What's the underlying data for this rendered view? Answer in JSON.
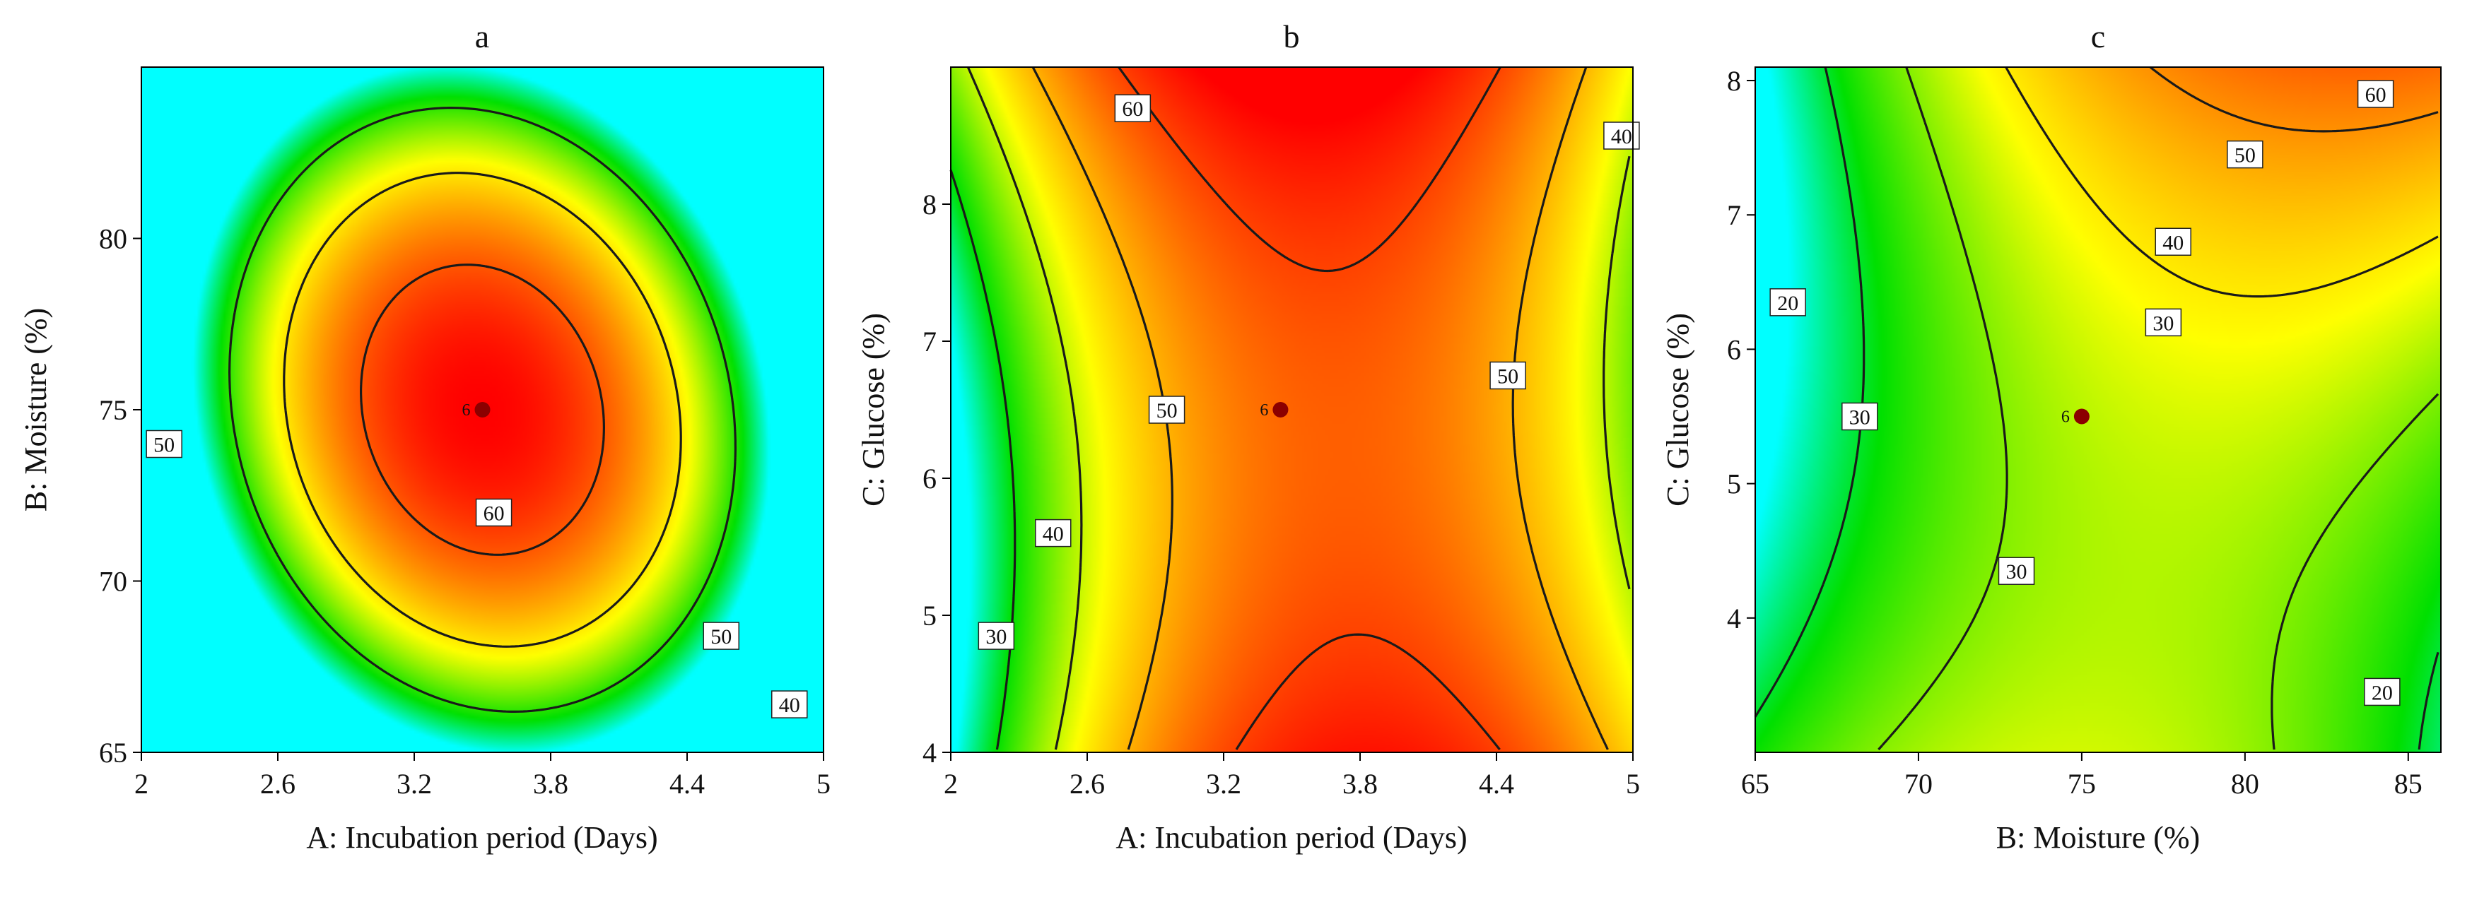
{
  "colors": {
    "high": "#ff0000",
    "upper": "#ff7a00",
    "mid": "#ffff00",
    "low": "#00e000",
    "lowest": "#00ffff",
    "contour": "#1a1a1a",
    "center_point": "#8b0000"
  },
  "chart_data": [
    {
      "type": "contour",
      "title": "a",
      "xlabel": "A: Incubation period (Days)",
      "ylabel": "B: Moisture (%)",
      "xlim": [
        2,
        5
      ],
      "ylim": [
        65,
        85
      ],
      "xticks": [
        2,
        2.6,
        3.2,
        3.8,
        4.4,
        5
      ],
      "xtick_labels": [
        "2",
        "2.6",
        "3.2",
        "3.8",
        "4.4",
        "5"
      ],
      "yticks": [
        65,
        70,
        75,
        80
      ],
      "ytick_labels": [
        "65",
        "70",
        "75",
        "80"
      ],
      "response_model": {
        "intercept": 66,
        "linear": [
          0,
          0
        ],
        "quadratic": [
          -48,
          -34
        ],
        "interaction": [
          -10
        ]
      },
      "contour_levels": [
        40,
        50,
        60
      ],
      "contour_labels": [
        {
          "text": "50",
          "x": 2.1,
          "y": 74.0
        },
        {
          "text": "60",
          "x": 3.55,
          "y": 72.0
        },
        {
          "text": "50",
          "x": 4.55,
          "y": 68.4
        },
        {
          "text": "40",
          "x": 4.85,
          "y": 66.4
        }
      ],
      "center_point": {
        "x": 3.5,
        "y": 75,
        "label": "6"
      }
    },
    {
      "type": "contour",
      "title": "b",
      "xlabel": "A: Incubation period (Days)",
      "ylabel": "C: Glucose (%)",
      "xlim": [
        2,
        5
      ],
      "ylim": [
        4,
        9
      ],
      "xticks": [
        2,
        2.6,
        3.2,
        3.8,
        4.4,
        5
      ],
      "xtick_labels": [
        "2",
        "2.6",
        "3.2",
        "3.8",
        "4.4",
        "5"
      ],
      "yticks": [
        4,
        5,
        6,
        7,
        8
      ],
      "ytick_labels": [
        "4",
        "5",
        "6",
        "7",
        "8"
      ],
      "response_model": {
        "intercept": 57,
        "linear": [
          8,
          3
        ],
        "quadratic": [
          -29,
          9
        ],
        "interaction": [
          -5
        ]
      },
      "contour_levels": [
        30,
        40,
        50,
        60
      ],
      "contour_labels": [
        {
          "text": "60",
          "x": 2.8,
          "y": 8.7
        },
        {
          "text": "40",
          "x": 4.95,
          "y": 8.5
        },
        {
          "text": "50",
          "x": 4.45,
          "y": 6.75
        },
        {
          "text": "50",
          "x": 2.95,
          "y": 6.5
        },
        {
          "text": "40",
          "x": 2.45,
          "y": 5.6
        },
        {
          "text": "30",
          "x": 2.2,
          "y": 4.85
        }
      ],
      "center_point": {
        "x": 3.45,
        "y": 6.5,
        "label": "6"
      }
    },
    {
      "type": "contour",
      "title": "c",
      "xlabel": "B: Moisture (%)",
      "ylabel": "C: Glucose (%)",
      "xlim": [
        65,
        86
      ],
      "ylim": [
        3,
        8.1
      ],
      "xticks": [
        65,
        70,
        75,
        80,
        85
      ],
      "xtick_labels": [
        "65",
        "70",
        "75",
        "80",
        "85"
      ],
      "yticks": [
        4,
        5,
        6,
        7,
        8
      ],
      "ytick_labels": [
        "4",
        "5",
        "6",
        "7",
        "8"
      ],
      "response_model": {
        "intercept": 34,
        "linear": [
          10,
          6
        ],
        "quadratic": [
          -15,
          7
        ],
        "interaction": [
          12
        ]
      },
      "contour_levels": [
        20,
        30,
        40,
        50,
        60
      ],
      "contour_labels": [
        {
          "text": "60",
          "x": 84,
          "y": 7.9
        },
        {
          "text": "50",
          "x": 80,
          "y": 7.45
        },
        {
          "text": "40",
          "x": 77.8,
          "y": 6.8
        },
        {
          "text": "30",
          "x": 77.5,
          "y": 6.2
        },
        {
          "text": "20",
          "x": 66,
          "y": 6.35
        },
        {
          "text": "30",
          "x": 68.2,
          "y": 5.5
        },
        {
          "text": "30",
          "x": 73,
          "y": 4.35
        },
        {
          "text": "20",
          "x": 84.2,
          "y": 3.45
        }
      ],
      "center_point": {
        "x": 75,
        "y": 5.5,
        "label": "6"
      }
    }
  ]
}
